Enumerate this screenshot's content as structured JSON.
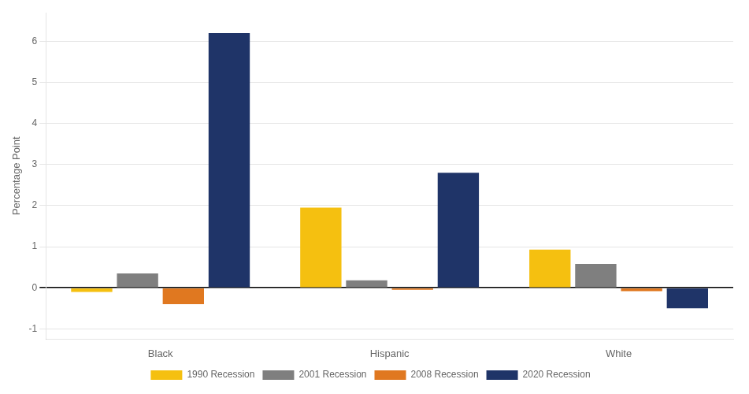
{
  "chart_data": {
    "type": "bar",
    "categories": [
      "Black",
      "Hispanic",
      "White"
    ],
    "series": [
      {
        "name": "1990 Recession",
        "color": "#F5C010",
        "values": [
          -0.1,
          1.95,
          0.93
        ]
      },
      {
        "name": "2001 Recession",
        "color": "#7F7F7F",
        "values": [
          0.35,
          0.18,
          0.58
        ]
      },
      {
        "name": "2008 Recession",
        "color": "#E07820",
        "values": [
          -0.4,
          -0.05,
          -0.08
        ]
      },
      {
        "name": "2020 Recession",
        "color": "#1F3468",
        "values": [
          6.2,
          2.8,
          -0.5
        ]
      }
    ],
    "y_label": "Percentage Point",
    "ylim": [
      -1.25,
      6.7
    ],
    "yticks": [
      -1,
      0,
      1,
      2,
      3,
      4,
      5,
      6
    ],
    "grid": true,
    "legend": "bottom"
  }
}
